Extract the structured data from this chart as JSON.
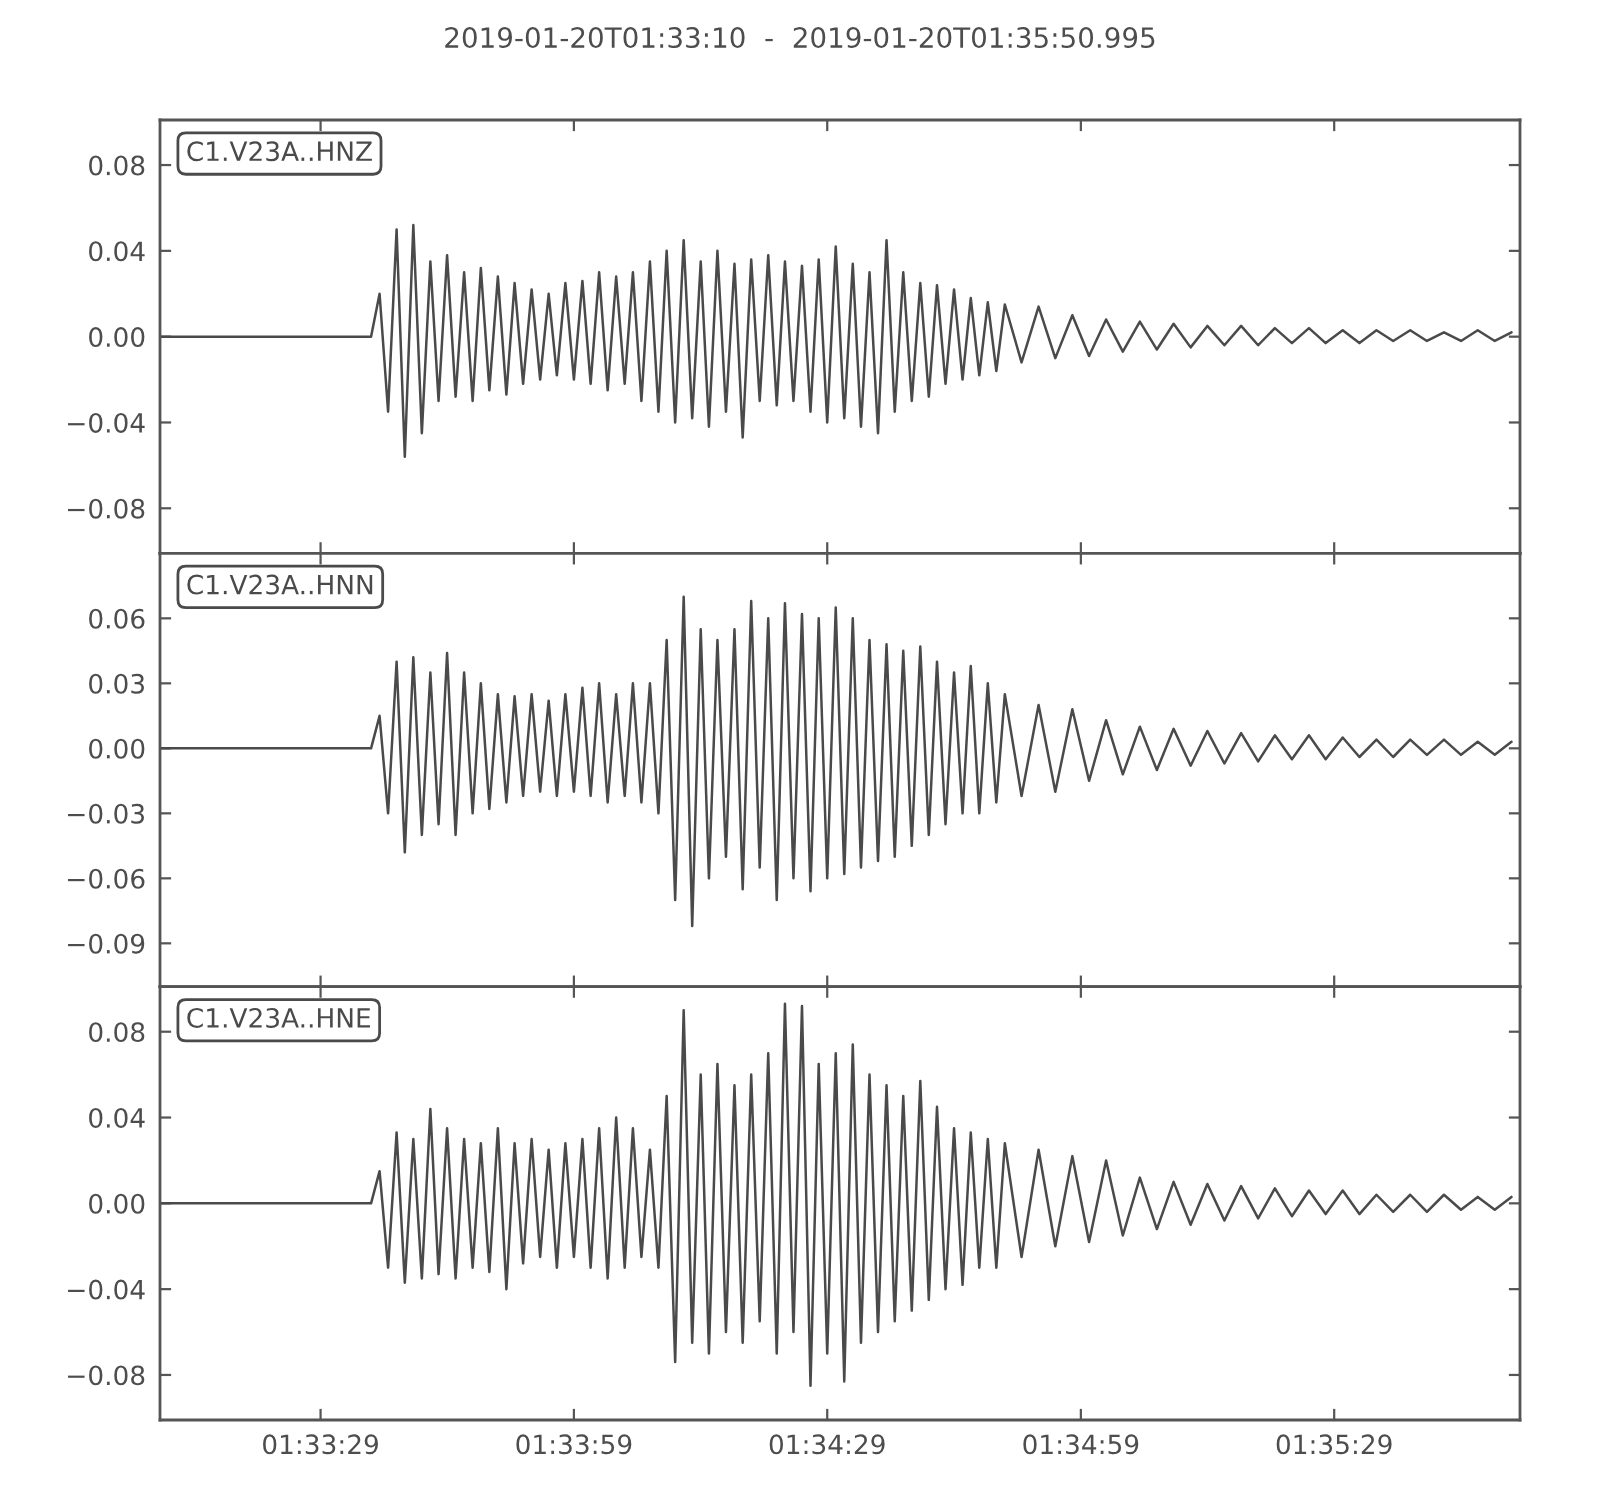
{
  "chart_data": [
    {
      "type": "line",
      "title": "2019-01-20T01:33:10  -  2019-01-20T01:35:50.995",
      "tick_labels": "y",
      "x": [
        1.55278,
        1.55972,
        1.56,
        1.56028,
        1.56056,
        1.56083,
        1.56111,
        1.56139,
        1.56167,
        1.56194,
        1.56222,
        1.5625,
        1.56278,
        1.56306,
        1.56333,
        1.56361,
        1.56389,
        1.56417,
        1.56444,
        1.56472,
        1.565,
        1.56528,
        1.56556,
        1.56583,
        1.56611,
        1.56639,
        1.56667,
        1.56694,
        1.56722,
        1.5675,
        1.56778,
        1.56806,
        1.56833,
        1.56861,
        1.56889,
        1.56917,
        1.56944,
        1.56972,
        1.57,
        1.57028,
        1.57056,
        1.57083,
        1.57111,
        1.57139,
        1.57167,
        1.57194,
        1.57222,
        1.5725,
        1.57278,
        1.57306,
        1.57333,
        1.57361,
        1.57389,
        1.57417,
        1.57444,
        1.57472,
        1.575,
        1.57528,
        1.57556,
        1.57583,
        1.57611,
        1.57639,
        1.57667,
        1.57694,
        1.57722,
        1.5775,
        1.57778,
        1.57806,
        1.57833,
        1.57861,
        1.57889,
        1.57917,
        1.57944,
        1.57972,
        1.58,
        1.58028,
        1.58056,
        1.58111,
        1.58167,
        1.58222,
        1.58278,
        1.58333,
        1.58389,
        1.58444,
        1.585,
        1.58556,
        1.58611,
        1.58667,
        1.58722,
        1.58778,
        1.58833,
        1.58889,
        1.58944,
        1.59,
        1.59056,
        1.59111,
        1.59167,
        1.59222,
        1.59278,
        1.59333,
        1.59389,
        1.59444,
        1.595,
        1.59556,
        1.59611,
        1.59667,
        1.59722
      ],
      "series": [
        {
          "name": "C1.V23A..HNZ",
          "color": "#4a4a4a",
          "values": [
            0,
            0,
            0.02,
            -0.035,
            0.05,
            -0.056,
            0.052,
            -0.045,
            0.035,
            -0.03,
            0.038,
            -0.028,
            0.03,
            -0.03,
            0.032,
            -0.025,
            0.028,
            -0.027,
            0.025,
            -0.022,
            0.022,
            -0.02,
            0.02,
            -0.018,
            0.025,
            -0.02,
            0.026,
            -0.022,
            0.03,
            -0.025,
            0.028,
            -0.022,
            0.03,
            -0.03,
            0.035,
            -0.035,
            0.04,
            -0.04,
            0.045,
            -0.038,
            0.035,
            -0.042,
            0.04,
            -0.035,
            0.034,
            -0.047,
            0.036,
            -0.03,
            0.038,
            -0.032,
            0.035,
            -0.03,
            0.033,
            -0.035,
            0.036,
            -0.04,
            0.042,
            -0.038,
            0.034,
            -0.042,
            0.03,
            -0.045,
            0.045,
            -0.035,
            0.03,
            -0.03,
            0.025,
            -0.028,
            0.024,
            -0.022,
            0.022,
            -0.02,
            0.018,
            -0.018,
            0.016,
            -0.016,
            0.015,
            -0.012,
            0.014,
            -0.01,
            0.01,
            -0.009,
            0.008,
            -0.007,
            0.007,
            -0.006,
            0.006,
            -0.005,
            0.005,
            -0.004,
            0.005,
            -0.004,
            0.004,
            -0.003,
            0.004,
            -0.003,
            0.003,
            -0.003,
            0.003,
            -0.002,
            0.003,
            -0.002,
            0.002,
            -0.002,
            0.003,
            -0.002,
            0.002
          ]
        }
      ],
      "xlim": [
        1.55278,
        1.5975
      ],
      "xticks": [
        {
          "value": 1.55806,
          "label": null
        },
        {
          "value": 1.56639,
          "label": null
        },
        {
          "value": 1.57472,
          "label": null
        },
        {
          "value": 1.58306,
          "label": null
        },
        {
          "value": 1.59139,
          "label": null
        }
      ],
      "ylim": [
        -0.101,
        0.101
      ],
      "yticks": [
        {
          "value": -0.08,
          "label": "−0.08"
        },
        {
          "value": -0.04,
          "label": "−0.04"
        },
        {
          "value": 0,
          "label": "0.00"
        },
        {
          "value": 0.04,
          "label": "0.04"
        },
        {
          "value": 0.08,
          "label": "0.08"
        }
      ]
    },
    {
      "type": "line",
      "tick_labels": "y",
      "x": [
        1.55278,
        1.55972,
        1.56,
        1.56028,
        1.56056,
        1.56083,
        1.56111,
        1.56139,
        1.56167,
        1.56194,
        1.56222,
        1.5625,
        1.56278,
        1.56306,
        1.56333,
        1.56361,
        1.56389,
        1.56417,
        1.56444,
        1.56472,
        1.565,
        1.56528,
        1.56556,
        1.56583,
        1.56611,
        1.56639,
        1.56667,
        1.56694,
        1.56722,
        1.5675,
        1.56778,
        1.56806,
        1.56833,
        1.56861,
        1.56889,
        1.56917,
        1.56944,
        1.56972,
        1.57,
        1.57028,
        1.57056,
        1.57083,
        1.57111,
        1.57139,
        1.57167,
        1.57194,
        1.57222,
        1.5725,
        1.57278,
        1.57306,
        1.57333,
        1.57361,
        1.57389,
        1.57417,
        1.57444,
        1.57472,
        1.575,
        1.57528,
        1.57556,
        1.57583,
        1.57611,
        1.57639,
        1.57667,
        1.57694,
        1.57722,
        1.5775,
        1.57778,
        1.57806,
        1.57833,
        1.57861,
        1.57889,
        1.57917,
        1.57944,
        1.57972,
        1.58,
        1.58028,
        1.58056,
        1.58111,
        1.58167,
        1.58222,
        1.58278,
        1.58333,
        1.58389,
        1.58444,
        1.585,
        1.58556,
        1.58611,
        1.58667,
        1.58722,
        1.58778,
        1.58833,
        1.58889,
        1.58944,
        1.59,
        1.59056,
        1.59111,
        1.59167,
        1.59222,
        1.59278,
        1.59333,
        1.59389,
        1.59444,
        1.595,
        1.59556,
        1.59611,
        1.59667,
        1.59722
      ],
      "series": [
        {
          "name": "C1.V23A..HNN",
          "color": "#4a4a4a",
          "values": [
            0,
            0,
            0.015,
            -0.03,
            0.04,
            -0.048,
            0.042,
            -0.04,
            0.035,
            -0.035,
            0.044,
            -0.04,
            0.035,
            -0.03,
            0.03,
            -0.028,
            0.025,
            -0.025,
            0.024,
            -0.022,
            0.025,
            -0.02,
            0.022,
            -0.022,
            0.025,
            -0.02,
            0.028,
            -0.022,
            0.03,
            -0.025,
            0.025,
            -0.022,
            0.03,
            -0.025,
            0.03,
            -0.03,
            0.05,
            -0.07,
            0.07,
            -0.082,
            0.055,
            -0.06,
            0.05,
            -0.05,
            0.055,
            -0.065,
            0.068,
            -0.055,
            0.06,
            -0.07,
            0.067,
            -0.06,
            0.062,
            -0.066,
            0.06,
            -0.06,
            0.065,
            -0.058,
            0.06,
            -0.055,
            0.05,
            -0.052,
            0.048,
            -0.05,
            0.045,
            -0.045,
            0.047,
            -0.04,
            0.04,
            -0.035,
            0.035,
            -0.03,
            0.038,
            -0.03,
            0.03,
            -0.025,
            0.025,
            -0.022,
            0.02,
            -0.02,
            0.018,
            -0.015,
            0.013,
            -0.012,
            0.01,
            -0.01,
            0.009,
            -0.008,
            0.008,
            -0.007,
            0.007,
            -0.006,
            0.006,
            -0.005,
            0.006,
            -0.005,
            0.005,
            -0.004,
            0.004,
            -0.004,
            0.004,
            -0.003,
            0.004,
            -0.003,
            0.003,
            -0.003,
            0.003
          ]
        }
      ],
      "xlim": [
        1.55278,
        1.5975
      ],
      "xticks": [
        {
          "value": 1.55806,
          "label": null
        },
        {
          "value": 1.56639,
          "label": null
        },
        {
          "value": 1.57472,
          "label": null
        },
        {
          "value": 1.58306,
          "label": null
        },
        {
          "value": 1.59139,
          "label": null
        }
      ],
      "ylim": [
        -0.11,
        0.09
      ],
      "yticks": [
        {
          "value": -0.09,
          "label": "−0.09"
        },
        {
          "value": -0.06,
          "label": "−0.06"
        },
        {
          "value": -0.03,
          "label": "−0.03"
        },
        {
          "value": 0,
          "label": "0.00"
        },
        {
          "value": 0.03,
          "label": "0.03"
        },
        {
          "value": 0.06,
          "label": "0.06"
        }
      ]
    },
    {
      "type": "line",
      "x": [
        1.55278,
        1.55972,
        1.56,
        1.56028,
        1.56056,
        1.56083,
        1.56111,
        1.56139,
        1.56167,
        1.56194,
        1.56222,
        1.5625,
        1.56278,
        1.56306,
        1.56333,
        1.56361,
        1.56389,
        1.56417,
        1.56444,
        1.56472,
        1.565,
        1.56528,
        1.56556,
        1.56583,
        1.56611,
        1.56639,
        1.56667,
        1.56694,
        1.56722,
        1.5675,
        1.56778,
        1.56806,
        1.56833,
        1.56861,
        1.56889,
        1.56917,
        1.56944,
        1.56972,
        1.57,
        1.57028,
        1.57056,
        1.57083,
        1.57111,
        1.57139,
        1.57167,
        1.57194,
        1.57222,
        1.5725,
        1.57278,
        1.57306,
        1.57333,
        1.57361,
        1.57389,
        1.57417,
        1.57444,
        1.57472,
        1.575,
        1.57528,
        1.57556,
        1.57583,
        1.57611,
        1.57639,
        1.57667,
        1.57694,
        1.57722,
        1.5775,
        1.57778,
        1.57806,
        1.57833,
        1.57861,
        1.57889,
        1.57917,
        1.57944,
        1.57972,
        1.58,
        1.58028,
        1.58056,
        1.58111,
        1.58167,
        1.58222,
        1.58278,
        1.58333,
        1.58389,
        1.58444,
        1.585,
        1.58556,
        1.58611,
        1.58667,
        1.58722,
        1.58778,
        1.58833,
        1.58889,
        1.58944,
        1.59,
        1.59056,
        1.59111,
        1.59167,
        1.59222,
        1.59278,
        1.59333,
        1.59389,
        1.59444,
        1.595,
        1.59556,
        1.59611,
        1.59667,
        1.59722
      ],
      "series": [
        {
          "name": "C1.V23A..HNE",
          "color": "#4a4a4a",
          "values": [
            0,
            0,
            0.015,
            -0.03,
            0.033,
            -0.037,
            0.03,
            -0.035,
            0.044,
            -0.033,
            0.035,
            -0.035,
            0.03,
            -0.03,
            0.028,
            -0.032,
            0.035,
            -0.04,
            0.028,
            -0.028,
            0.03,
            -0.025,
            0.025,
            -0.03,
            0.028,
            -0.025,
            0.03,
            -0.03,
            0.035,
            -0.035,
            0.04,
            -0.03,
            0.035,
            -0.025,
            0.025,
            -0.03,
            0.05,
            -0.074,
            0.09,
            -0.065,
            0.06,
            -0.07,
            0.065,
            -0.06,
            0.055,
            -0.065,
            0.06,
            -0.055,
            0.07,
            -0.07,
            0.093,
            -0.06,
            0.092,
            -0.085,
            0.065,
            -0.07,
            0.07,
            -0.083,
            0.074,
            -0.065,
            0.06,
            -0.06,
            0.055,
            -0.055,
            0.05,
            -0.05,
            0.057,
            -0.045,
            0.045,
            -0.04,
            0.035,
            -0.038,
            0.033,
            -0.03,
            0.03,
            -0.03,
            0.028,
            -0.025,
            0.025,
            -0.02,
            0.022,
            -0.018,
            0.02,
            -0.015,
            0.012,
            -0.012,
            0.01,
            -0.01,
            0.009,
            -0.008,
            0.008,
            -0.007,
            0.007,
            -0.006,
            0.006,
            -0.005,
            0.006,
            -0.005,
            0.004,
            -0.004,
            0.004,
            -0.004,
            0.004,
            -0.003,
            0.003,
            -0.003,
            0.003
          ]
        }
      ],
      "xlim": [
        1.55278,
        1.5975
      ],
      "xticks": [
        {
          "value": 1.55806,
          "label": "01:33:29"
        },
        {
          "value": 1.56639,
          "label": "01:33:59"
        },
        {
          "value": 1.57472,
          "label": "01:34:29"
        },
        {
          "value": 1.58306,
          "label": "01:34:59"
        },
        {
          "value": 1.59139,
          "label": "01:35:29"
        }
      ],
      "ylim": [
        -0.101,
        0.101
      ],
      "yticks": [
        {
          "value": -0.08,
          "label": "−0.08"
        },
        {
          "value": -0.04,
          "label": "−0.04"
        },
        {
          "value": 0,
          "label": "0.00"
        },
        {
          "value": 0.04,
          "label": "0.04"
        },
        {
          "value": 0.08,
          "label": "0.08"
        }
      ]
    }
  ]
}
